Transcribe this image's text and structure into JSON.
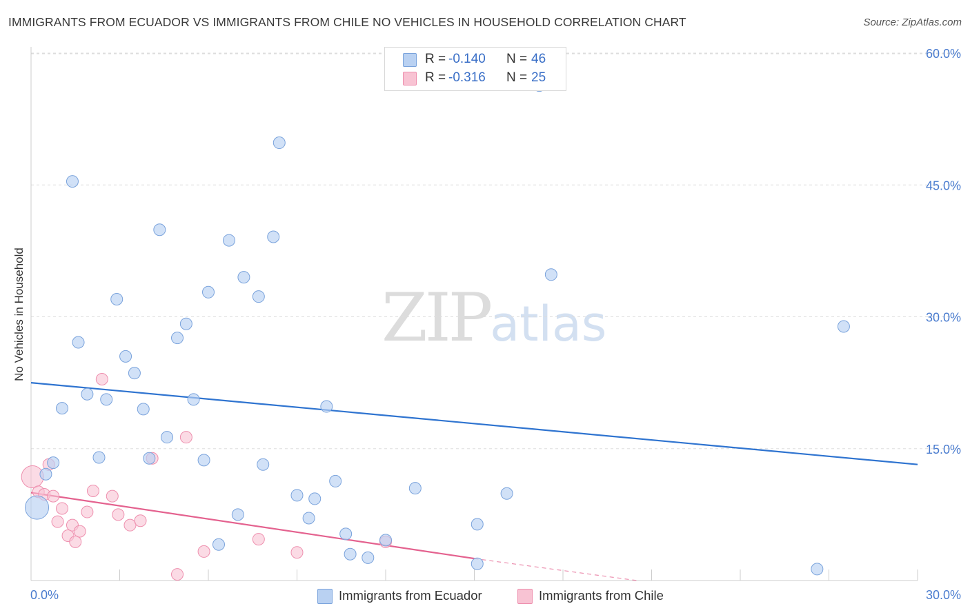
{
  "title": "IMMIGRANTS FROM ECUADOR VS IMMIGRANTS FROM CHILE NO VEHICLES IN HOUSEHOLD CORRELATION CHART",
  "source": "Source: ZipAtlas.com",
  "watermark": {
    "zip": "ZIP",
    "atlas": "atlas"
  },
  "colors": {
    "ecuador_fill": "#b9d1f2",
    "ecuador_stroke": "#7aa3dc",
    "ecuador_line": "#2f74d0",
    "chile_fill": "#f8c3d3",
    "chile_stroke": "#ee8fae",
    "chile_line": "#e4628f",
    "tick_text": "#4a7ccf",
    "grid": "#dddddd"
  },
  "legend": {
    "rows": [
      {
        "r_label": "R =",
        "r_value": "-0.140",
        "n_label": "N =",
        "n_value": "46"
      },
      {
        "r_label": "R =",
        "r_value": "-0.316",
        "n_label": "N =",
        "n_value": "25"
      }
    ]
  },
  "chart_data": {
    "type": "scatter",
    "title": "IMMIGRANTS FROM ECUADOR VS IMMIGRANTS FROM CHILE NO VEHICLES IN HOUSEHOLD CORRELATION CHART",
    "xlabel": "",
    "ylabel": "No Vehicles in Household",
    "xlim": [
      0,
      30
    ],
    "ylim": [
      0,
      62
    ],
    "x_tick_labels": [
      "0.0%",
      "30.0%"
    ],
    "y_ticks": [
      15,
      30,
      45,
      60
    ],
    "y_tick_labels": [
      "15.0%",
      "30.0%",
      "45.0%",
      "60.0%"
    ],
    "grid": "horizontal dashed",
    "legend_position": "top-center",
    "series": [
      {
        "name": "Immigrants from Ecuador",
        "points": [
          [
            0.2,
            8.3
          ],
          [
            0.5,
            12.1
          ],
          [
            0.75,
            13.4
          ],
          [
            1.05,
            19.6
          ],
          [
            1.4,
            45.4
          ],
          [
            1.6,
            27.1
          ],
          [
            1.9,
            21.2
          ],
          [
            2.3,
            14.0
          ],
          [
            2.55,
            20.6
          ],
          [
            2.9,
            32.0
          ],
          [
            3.2,
            25.5
          ],
          [
            3.5,
            23.6
          ],
          [
            3.8,
            19.5
          ],
          [
            4.0,
            13.9
          ],
          [
            4.35,
            39.9
          ],
          [
            4.6,
            16.3
          ],
          [
            4.95,
            27.6
          ],
          [
            5.25,
            29.2
          ],
          [
            5.5,
            20.6
          ],
          [
            5.85,
            13.7
          ],
          [
            6.0,
            32.8
          ],
          [
            6.35,
            4.1
          ],
          [
            6.7,
            38.7
          ],
          [
            7.0,
            7.5
          ],
          [
            7.2,
            34.5
          ],
          [
            7.7,
            32.3
          ],
          [
            7.85,
            13.2
          ],
          [
            8.2,
            39.1
          ],
          [
            8.4,
            49.8
          ],
          [
            9.0,
            9.7
          ],
          [
            9.4,
            7.1
          ],
          [
            9.6,
            9.3
          ],
          [
            10.0,
            19.8
          ],
          [
            10.3,
            11.3
          ],
          [
            10.65,
            5.3
          ],
          [
            10.8,
            3.0
          ],
          [
            11.4,
            2.6
          ],
          [
            12.0,
            4.6
          ],
          [
            13.0,
            10.5
          ],
          [
            15.1,
            6.4
          ],
          [
            16.1,
            9.9
          ],
          [
            17.2,
            56.3
          ],
          [
            17.6,
            34.8
          ],
          [
            27.5,
            28.9
          ],
          [
            26.6,
            1.3
          ],
          [
            15.1,
            1.9
          ]
        ],
        "trend": {
          "x": [
            0,
            30
          ],
          "y": [
            22.5,
            13.2
          ]
        }
      },
      {
        "name": "Immigrants from Chile",
        "points": [
          [
            0.05,
            11.8
          ],
          [
            0.25,
            10.1
          ],
          [
            0.45,
            9.8
          ],
          [
            0.6,
            13.2
          ],
          [
            0.75,
            9.6
          ],
          [
            0.9,
            6.7
          ],
          [
            1.05,
            8.2
          ],
          [
            1.25,
            5.1
          ],
          [
            1.4,
            6.3
          ],
          [
            1.5,
            4.4
          ],
          [
            1.65,
            5.6
          ],
          [
            1.9,
            7.8
          ],
          [
            2.1,
            10.2
          ],
          [
            2.4,
            22.9
          ],
          [
            2.75,
            9.6
          ],
          [
            2.95,
            7.5
          ],
          [
            3.35,
            6.3
          ],
          [
            3.7,
            6.8
          ],
          [
            4.1,
            13.9
          ],
          [
            4.95,
            0.7
          ],
          [
            5.25,
            16.3
          ],
          [
            5.85,
            3.3
          ],
          [
            7.7,
            4.7
          ],
          [
            9.0,
            3.2
          ],
          [
            12.0,
            4.4
          ]
        ],
        "trend": {
          "x": [
            0,
            15
          ],
          "y": [
            10.0,
            2.5
          ]
        },
        "trend_extension": {
          "x": [
            15,
            20.5
          ],
          "y": [
            2.5,
            0
          ]
        }
      }
    ]
  }
}
